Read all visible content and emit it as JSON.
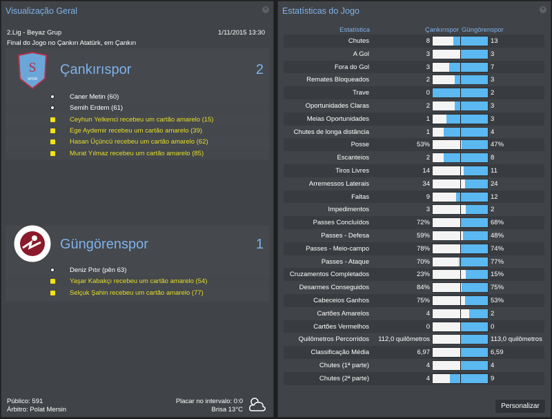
{
  "overview": {
    "title": "Visualização Geral",
    "competition": "2.Lig - Beyaz Grup",
    "datetime": "1/11/2015 13:30",
    "venue": "Final do Jogo no Çankırı Atatürk, em Çankırı",
    "home": {
      "name": "Çankırıspor",
      "score": "2",
      "logo_text": "ÇANKIRI SPOR",
      "events": [
        {
          "type": "goal",
          "text": "Caner Metin (60)"
        },
        {
          "type": "goal",
          "text": "Semih Erdem (61)"
        },
        {
          "type": "yellow",
          "text": "Ceyhun Yelkenci recebeu um cartão amarelo (15)"
        },
        {
          "type": "yellow",
          "text": "Ege Aydemir recebeu um cartão amarelo (39)"
        },
        {
          "type": "yellow",
          "text": "Hasan Üçüncü recebeu um cartão amarelo (62)"
        },
        {
          "type": "yellow",
          "text": "Murat Yılmaz recebeu um cartão amarelo (85)"
        }
      ]
    },
    "away": {
      "name": "Güngörenspor",
      "score": "1",
      "logo_text": "GÜNGÖREN BELEDİYESPOR 1983",
      "events": [
        {
          "type": "goal",
          "text": "Deniz Pıtır (pên 63)"
        },
        {
          "type": "yellow",
          "text": "Yaşar Kabakçı recebeu um cartão amarelo (54)"
        },
        {
          "type": "yellow",
          "text": "Selçuk Şahin recebeu um cartão amarelo (77)"
        }
      ]
    },
    "attendance": "Público: 591",
    "referee": "Árbitro: Polat Mersin",
    "halftime": "Placar no intervalo: 0:0",
    "weather": "Brisa 13°C",
    "weather_icon": "cloud-icon"
  },
  "stats": {
    "title": "Estatísticas do Jogo",
    "col_stat": "Estatística",
    "col_home": "Çankırıspor",
    "col_away": "Güngörenspor",
    "button": "Personalizar",
    "colors": {
      "home": "#f4f4f4",
      "away": "#5bb8f0"
    },
    "rows": [
      {
        "label": "Chutes",
        "home": "8",
        "away": "13",
        "h": 8,
        "a": 13
      },
      {
        "label": "A Gol",
        "home": "3",
        "away": "3",
        "h": 3,
        "a": 3
      },
      {
        "label": "Fora do Gol",
        "home": "3",
        "away": "7",
        "h": 3,
        "a": 7
      },
      {
        "label": "Remates Bloqueados",
        "home": "2",
        "away": "3",
        "h": 2,
        "a": 3
      },
      {
        "label": "Trave",
        "home": "0",
        "away": "2",
        "h": 0,
        "a": 2
      },
      {
        "label": "Oportunidades Claras",
        "home": "2",
        "away": "3",
        "h": 2,
        "a": 3
      },
      {
        "label": "Meias Oportunidades",
        "home": "1",
        "away": "3",
        "h": 1,
        "a": 3
      },
      {
        "label": "Chutes de longa distância",
        "home": "1",
        "away": "4",
        "h": 1,
        "a": 4
      },
      {
        "label": "Posse",
        "home": "53%",
        "away": "47%",
        "h": 53,
        "a": 47
      },
      {
        "label": "Escanteios",
        "home": "2",
        "away": "8",
        "h": 2,
        "a": 8
      },
      {
        "label": "Tiros Livres",
        "home": "14",
        "away": "11",
        "h": 14,
        "a": 11
      },
      {
        "label": "Arremessos Laterais",
        "home": "34",
        "away": "24",
        "h": 34,
        "a": 24
      },
      {
        "label": "Faltas",
        "home": "9",
        "away": "12",
        "h": 9,
        "a": 12
      },
      {
        "label": "Impedimentos",
        "home": "3",
        "away": "2",
        "h": 3,
        "a": 2
      },
      {
        "label": "Passes Concluídos",
        "home": "72%",
        "away": "68%",
        "h": 72,
        "a": 68
      },
      {
        "label": "Passes - Defesa",
        "home": "59%",
        "away": "48%",
        "h": 59,
        "a": 48
      },
      {
        "label": "Passes - Meio-campo",
        "home": "78%",
        "away": "74%",
        "h": 78,
        "a": 74
      },
      {
        "label": "Passes - Ataque",
        "home": "70%",
        "away": "77%",
        "h": 70,
        "a": 77
      },
      {
        "label": "Cruzamentos Completados",
        "home": "23%",
        "away": "15%",
        "h": 23,
        "a": 15
      },
      {
        "label": "Desarmes Conseguidos",
        "home": "84%",
        "away": "75%",
        "h": 84,
        "a": 75
      },
      {
        "label": "Cabeceios Ganhos",
        "home": "75%",
        "away": "53%",
        "h": 75,
        "a": 53
      },
      {
        "label": "Cartões Amarelos",
        "home": "4",
        "away": "2",
        "h": 4,
        "a": 2
      },
      {
        "label": "Cartões Vermelhos",
        "home": "0",
        "away": "0",
        "h": 0,
        "a": 0
      },
      {
        "label": "Quilômetros Percorridos",
        "home": "112,0 quilômetros",
        "away": "113,0 quilômetros",
        "h": 112,
        "a": 113
      },
      {
        "label": "Classificação Média",
        "home": "6,97",
        "away": "6,59",
        "h": 6.97,
        "a": 6.59
      },
      {
        "label": "Chutes (1ª parte)",
        "home": "4",
        "away": "4",
        "h": 4,
        "a": 4
      },
      {
        "label": "Chutes (2ª parte)",
        "home": "4",
        "away": "9",
        "h": 4,
        "a": 9
      }
    ]
  }
}
